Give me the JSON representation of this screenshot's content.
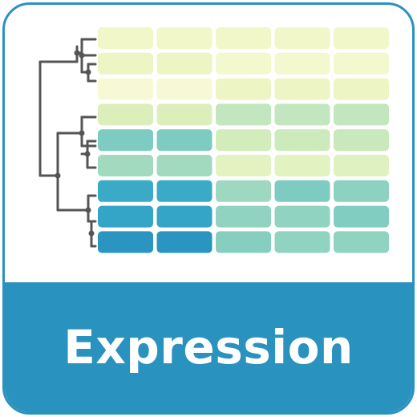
{
  "icon": {
    "name": "expression-heatmap-icon",
    "label": "Expression",
    "colors": {
      "border": "#2a92bf",
      "banner": "#2a92bf",
      "label_text": "#ffffff",
      "dendrogram": "#555555",
      "background": "#ffffff"
    }
  },
  "heatmap": {
    "rows": 9,
    "cols": 5,
    "cell_colors": [
      [
        "#f2f7c9",
        "#f2f7c9",
        "#f2f7c9",
        "#f2f7c9",
        "#f2f7c9"
      ],
      [
        "#eef5c5",
        "#eef5c5",
        "#f4f8cf",
        "#f4f8cf",
        "#f4f8cf"
      ],
      [
        "#f6f9d3",
        "#f6f9d3",
        "#eef5c5",
        "#eef5c5",
        "#eef5c5"
      ],
      [
        "#dcefbb",
        "#dcefbb",
        "#c2e6bd",
        "#c2e6bd",
        "#c2e6bd"
      ],
      [
        "#7ecbc1",
        "#7ecbc1",
        "#d3ecbc",
        "#cdeabc",
        "#c9e9bc"
      ],
      [
        "#a2dac0",
        "#a2dac0",
        "#e2f2c0",
        "#e2f2c0",
        "#dff1c0"
      ],
      [
        "#3aaac7",
        "#3aaac7",
        "#9fd8c0",
        "#7ecbc1",
        "#8dd1c1"
      ],
      [
        "#34a4c7",
        "#34a4c7",
        "#8fd3c0",
        "#8fd3c0",
        "#82cdc1"
      ],
      [
        "#2b95c2",
        "#2b95c2",
        "#86cfc0",
        "#8fd3c0",
        "#8fd3c0"
      ]
    ]
  }
}
